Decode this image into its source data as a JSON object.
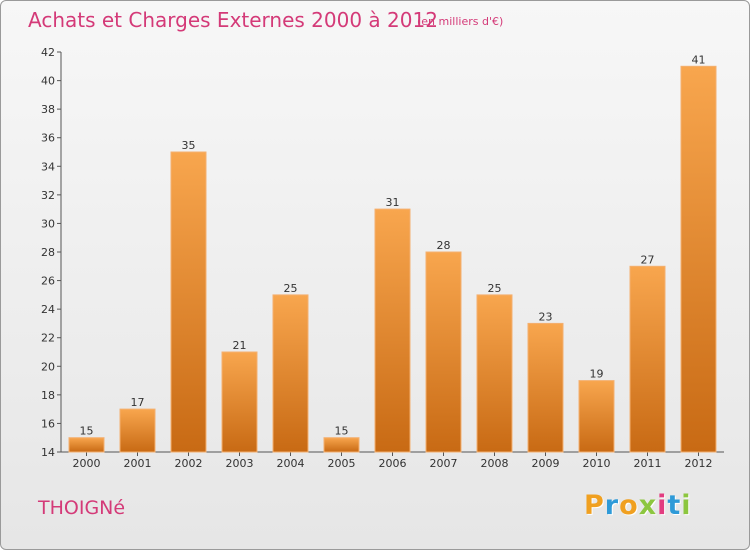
{
  "header": {
    "title": "Achats et Charges Externes 2000 à 2012",
    "subtitle": "(en milliers d'€)"
  },
  "footer": {
    "town": "THOIGNé",
    "logo_letters": [
      "P",
      "r",
      "o",
      "x",
      "i",
      "t",
      "i"
    ],
    "logo_colors": [
      "#f0a020",
      "#2e9ad8",
      "#f0a020",
      "#8cc63f",
      "#e23c80",
      "#2e9ad8",
      "#8cc63f"
    ]
  },
  "colors": {
    "bar_top": "#f8a64e",
    "bar_bottom": "#c86a14",
    "bar_edge": "#f4b070",
    "accent": "#d43a78"
  },
  "chart_data": {
    "type": "bar",
    "title": "Achats et Charges Externes 2000 à 2012",
    "subtitle": "(en milliers d'€)",
    "categories": [
      "2000",
      "2001",
      "2002",
      "2003",
      "2004",
      "2005",
      "2006",
      "2007",
      "2008",
      "2009",
      "2010",
      "2011",
      "2012"
    ],
    "values": [
      15,
      17,
      35,
      21,
      25,
      15,
      31,
      28,
      25,
      23,
      19,
      27,
      41
    ],
    "ylim": [
      14,
      42
    ],
    "yticks": [
      14,
      16,
      18,
      20,
      22,
      24,
      26,
      28,
      30,
      32,
      34,
      36,
      38,
      40,
      42
    ],
    "grid": false,
    "legend": "none"
  }
}
